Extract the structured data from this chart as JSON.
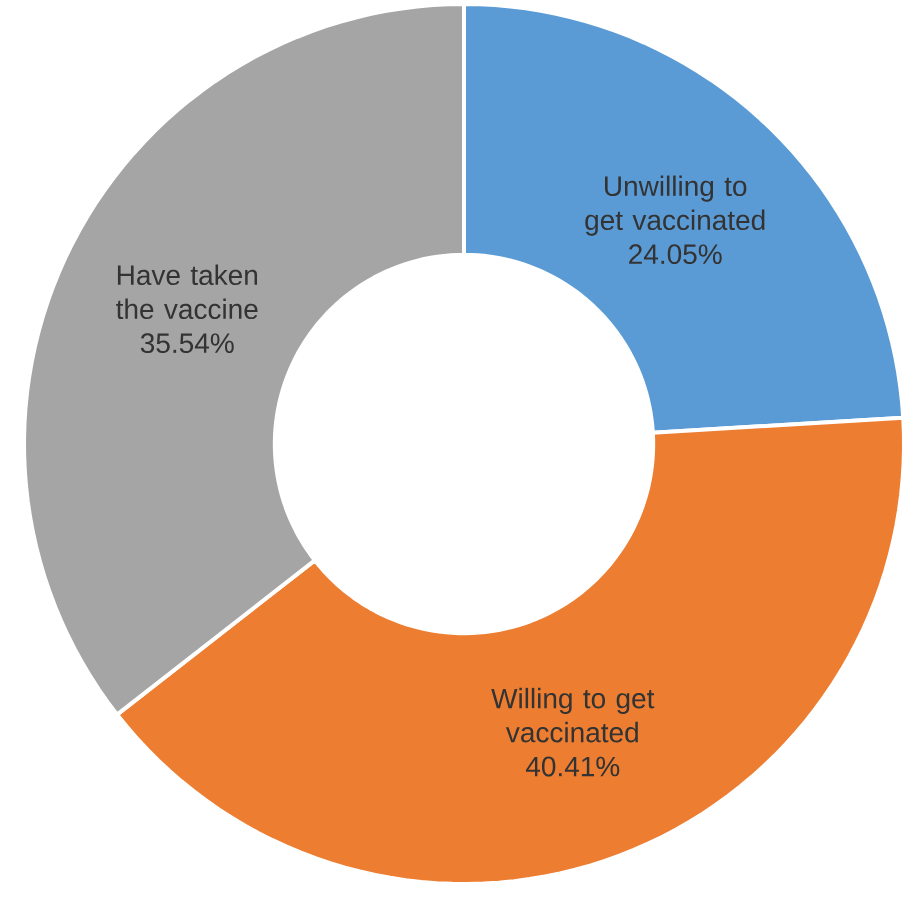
{
  "chart_data": {
    "type": "donut",
    "categories": [
      "Unwilling to get vaccinated",
      "Willing to get vaccinated",
      "Have taken the vaccine"
    ],
    "values": [
      24.05,
      40.41,
      35.54
    ],
    "colors": [
      "#5b9bd5",
      "#ed7d31",
      "#a5a5a5"
    ],
    "value_labels": [
      "24.05%",
      "40.41%",
      "35.54%"
    ]
  }
}
